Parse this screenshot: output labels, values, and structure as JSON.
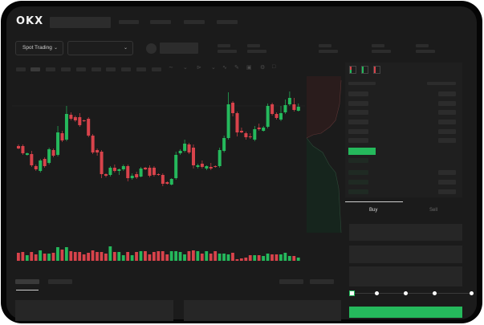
{
  "header": {
    "logo": "OKX"
  },
  "toolbar": {
    "market_select": "Spot Trading",
    "chevron": "chevron-down-icon"
  },
  "trade_panel": {
    "tabs": [
      "Buy",
      "Sell"
    ],
    "active_tab": "Buy",
    "slider_percent": 0
  },
  "colors": {
    "up": "#25b95c",
    "down": "#d8434b",
    "background": "#1b1b1b",
    "accent": "#25b95c"
  },
  "chart_data": {
    "type": "candlestick",
    "grid": false,
    "ylim": [
      0,
      140
    ],
    "candles": [
      [
        68,
        70,
        64,
        65
      ],
      [
        68,
        70,
        57,
        59
      ],
      [
        57,
        60,
        56,
        59
      ],
      [
        58,
        62,
        42,
        44
      ],
      [
        43,
        45,
        37,
        39
      ],
      [
        37,
        52,
        35,
        50
      ],
      [
        52,
        54,
        41,
        43
      ],
      [
        47,
        66,
        45,
        64
      ],
      [
        63,
        65,
        54,
        56
      ],
      [
        57,
        93,
        55,
        85
      ],
      [
        84,
        87,
        73,
        75
      ],
      [
        76,
        118,
        74,
        108
      ],
      [
        107,
        110,
        100,
        102
      ],
      [
        104,
        106,
        98,
        100
      ],
      [
        104,
        109,
        92,
        94
      ],
      [
        100,
        101,
        98,
        99
      ],
      [
        102,
        104,
        79,
        81
      ],
      [
        81,
        83,
        58,
        60
      ],
      [
        63,
        65,
        56,
        60
      ],
      [
        61,
        63,
        28,
        33
      ],
      [
        33,
        34,
        29,
        31
      ],
      [
        32,
        43,
        30,
        41
      ],
      [
        41,
        45,
        35,
        37
      ],
      [
        37,
        40,
        32,
        39
      ],
      [
        39,
        45,
        37,
        43
      ],
      [
        43,
        45,
        24,
        28
      ],
      [
        28,
        34,
        26,
        31
      ],
      [
        33,
        36,
        27,
        29
      ],
      [
        30,
        42,
        29,
        40
      ],
      [
        41,
        42,
        38,
        39
      ],
      [
        41,
        44,
        29,
        31
      ],
      [
        41,
        43,
        30,
        32
      ],
      [
        33,
        34,
        31,
        32
      ],
      [
        32,
        34,
        18,
        21
      ],
      [
        23,
        24,
        20,
        21
      ],
      [
        20,
        28,
        19,
        27
      ],
      [
        28,
        61,
        26,
        57
      ],
      [
        59,
        64,
        57,
        62
      ],
      [
        62,
        76,
        60,
        71
      ],
      [
        70,
        72,
        58,
        60
      ],
      [
        66,
        70,
        40,
        44
      ],
      [
        42,
        46,
        40,
        44
      ],
      [
        46,
        50,
        40,
        42
      ],
      [
        40,
        44,
        38,
        43
      ],
      [
        42,
        47,
        38,
        40
      ],
      [
        43,
        44,
        41,
        42
      ],
      [
        43,
        66,
        41,
        63
      ],
      [
        62,
        81,
        60,
        78
      ],
      [
        78,
        135,
        76,
        120
      ],
      [
        122,
        124,
        105,
        109
      ],
      [
        109,
        111,
        80,
        85
      ],
      [
        87,
        91,
        84,
        85
      ],
      [
        84,
        86,
        76,
        79
      ],
      [
        80,
        84,
        77,
        79
      ],
      [
        76,
        93,
        74,
        89
      ],
      [
        91,
        96,
        87,
        89
      ],
      [
        87,
        93,
        86,
        91
      ],
      [
        92,
        121,
        90,
        118
      ],
      [
        120,
        122,
        106,
        108
      ],
      [
        108,
        110,
        101,
        103
      ],
      [
        101,
        118,
        99,
        109
      ],
      [
        110,
        126,
        108,
        119
      ],
      [
        120,
        136,
        118,
        128
      ],
      [
        120,
        128,
        111,
        113
      ],
      [
        112,
        121,
        111,
        117
      ]
    ],
    "volume": [
      10,
      11,
      7,
      11,
      8,
      13,
      9,
      9,
      10,
      17,
      14,
      17,
      12,
      11,
      11,
      8,
      10,
      13,
      11,
      11,
      9,
      18,
      11,
      11,
      7,
      11,
      7,
      11,
      12,
      12,
      8,
      11,
      12,
      12,
      8,
      12,
      12,
      11,
      8,
      12,
      13,
      12,
      9,
      12,
      9,
      12,
      9,
      9,
      8,
      10,
      2,
      3,
      4,
      7,
      7,
      7,
      6,
      9,
      8,
      8,
      8,
      10,
      6,
      6,
      4
    ]
  }
}
